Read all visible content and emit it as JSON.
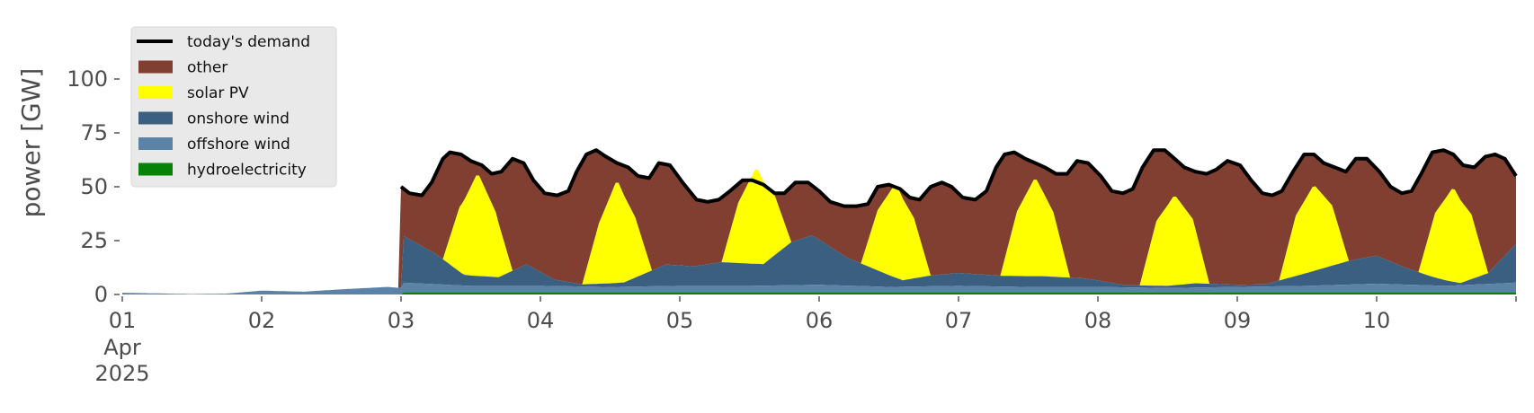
{
  "chart_data": {
    "type": "area",
    "ylabel": "power [GW]",
    "ylim": [
      0,
      120
    ],
    "y_ticks": [
      0,
      25,
      50,
      75,
      100
    ],
    "xlim_days": [
      1,
      11
    ],
    "x_ticks": [
      {
        "day": 1,
        "label": "01",
        "label2": "Apr",
        "label3": "2025"
      },
      {
        "day": 2,
        "label": "02"
      },
      {
        "day": 3,
        "label": "03"
      },
      {
        "day": 4,
        "label": "04"
      },
      {
        "day": 5,
        "label": "05"
      },
      {
        "day": 6,
        "label": "06"
      },
      {
        "day": 7,
        "label": "07"
      },
      {
        "day": 8,
        "label": "08"
      },
      {
        "day": 9,
        "label": "09"
      },
      {
        "day": 10,
        "label": "10"
      }
    ],
    "legend": [
      {
        "label": "today's demand",
        "kind": "line",
        "color": "#000000"
      },
      {
        "label": "other",
        "kind": "patch",
        "color": "#813f32"
      },
      {
        "label": "solar PV",
        "kind": "patch",
        "color": "#ffff00"
      },
      {
        "label": "onshore wind",
        "kind": "patch",
        "color": "#3a5f80"
      },
      {
        "label": "offshore wind",
        "kind": "patch",
        "color": "#5b83a7"
      },
      {
        "label": "hydroelectricity",
        "kind": "patch",
        "color": "#068206"
      }
    ],
    "legend_position": "top-left",
    "grid": false,
    "series": [
      {
        "name": "hydroelectricity",
        "color": "#068206",
        "x": [
          1,
          3,
          3.01,
          11
        ],
        "values": [
          0,
          0,
          1,
          1
        ]
      },
      {
        "name": "offshore wind",
        "color": "#5b83a7",
        "x": [
          1,
          1.25,
          1.5,
          1.75,
          2,
          2.3,
          2.6,
          2.9,
          3,
          3.01,
          3.5,
          4,
          4.5,
          5,
          5.5,
          6,
          6.5,
          7,
          7.5,
          8,
          8.5,
          9,
          9.5,
          10,
          10.5,
          11
        ],
        "values": [
          0.8,
          0.5,
          0.2,
          0.4,
          1.8,
          1.3,
          2.5,
          3.5,
          3,
          4.5,
          3,
          3,
          2.5,
          3,
          3,
          3.5,
          2.5,
          3,
          2.5,
          2.5,
          2,
          2.5,
          3,
          4,
          3,
          4.5
        ]
      },
      {
        "name": "onshore wind",
        "color": "#3a5f80",
        "x": [
          3,
          3.01,
          3.25,
          3.45,
          3.7,
          3.9,
          4.1,
          4.3,
          4.6,
          4.9,
          5.1,
          5.3,
          5.6,
          5.8,
          5.95,
          6.2,
          6.4,
          6.6,
          6.8,
          7,
          7.3,
          7.6,
          7.9,
          8.2,
          8.5,
          8.7,
          9,
          9.2,
          9.5,
          9.8,
          10,
          10.2,
          10.4,
          10.6,
          10.8,
          11
        ],
        "values": [
          0,
          22,
          14,
          5,
          4,
          10,
          3,
          1,
          2,
          10,
          9,
          11,
          10,
          20,
          23,
          13,
          8,
          3,
          5,
          6,
          5,
          5,
          4,
          1,
          1,
          2,
          1,
          1,
          6,
          11,
          13,
          8,
          4,
          1,
          5,
          18
        ]
      },
      {
        "name": "solar PV",
        "color": "#ffff00",
        "x": [
          3,
          3.3,
          3.42,
          3.55,
          3.68,
          3.8,
          4,
          4.3,
          4.42,
          4.55,
          4.68,
          4.8,
          5,
          5.3,
          5.42,
          5.55,
          5.68,
          5.8,
          6,
          6.3,
          6.42,
          6.55,
          6.68,
          6.8,
          7,
          7.3,
          7.42,
          7.55,
          7.68,
          7.8,
          8,
          8.3,
          8.42,
          8.55,
          8.68,
          8.8,
          9,
          9.3,
          9.42,
          9.55,
          9.68,
          9.8,
          10,
          10.3,
          10.42,
          10.55,
          10.68,
          10.8,
          11
        ],
        "values": [
          0,
          0,
          30,
          48,
          30,
          0,
          0,
          0,
          28,
          48,
          28,
          0,
          0,
          0,
          28,
          45,
          28,
          0,
          0,
          0,
          28,
          44,
          28,
          0,
          0,
          0,
          30,
          46,
          30,
          0,
          0,
          0,
          30,
          42,
          30,
          0,
          0,
          0,
          28,
          40,
          28,
          0,
          0,
          0,
          30,
          44,
          30,
          0,
          0
        ]
      },
      {
        "name": "other",
        "color": "#813f32",
        "x": [
          3,
          3.01,
          11
        ],
        "values": [
          0,
          0,
          0
        ]
      },
      {
        "name": "today's demand",
        "color": "#000000",
        "kind": "line",
        "x": [
          3,
          3.06,
          3.15,
          3.22,
          3.3,
          3.35,
          3.43,
          3.5,
          3.58,
          3.65,
          3.72,
          3.8,
          3.88,
          3.95,
          4.03,
          4.12,
          4.2,
          4.26,
          4.33,
          4.4,
          4.47,
          4.55,
          4.63,
          4.7,
          4.78,
          4.85,
          4.93,
          5.02,
          5.12,
          5.2,
          5.28,
          5.36,
          5.45,
          5.52,
          5.6,
          5.68,
          5.75,
          5.83,
          5.92,
          6,
          6.08,
          6.18,
          6.27,
          6.35,
          6.42,
          6.5,
          6.58,
          6.65,
          6.72,
          6.8,
          6.88,
          6.95,
          7.03,
          7.12,
          7.2,
          7.27,
          7.33,
          7.4,
          7.48,
          7.55,
          7.62,
          7.7,
          7.78,
          7.85,
          7.93,
          8.02,
          8.1,
          8.18,
          8.25,
          8.32,
          8.4,
          8.48,
          8.55,
          8.62,
          8.7,
          8.78,
          8.85,
          8.93,
          9.02,
          9.1,
          9.18,
          9.25,
          9.32,
          9.4,
          9.48,
          9.55,
          9.62,
          9.7,
          9.78,
          9.85,
          9.93,
          10.02,
          10.1,
          10.18,
          10.25,
          10.32,
          10.4,
          10.48,
          10.55,
          10.62,
          10.7,
          10.78,
          10.85,
          10.92,
          11
        ],
        "values": [
          50,
          47,
          46,
          52,
          63,
          66,
          65,
          62,
          60,
          56,
          57,
          63,
          61,
          53,
          47,
          46,
          48,
          57,
          65,
          67,
          64,
          61,
          59,
          55,
          54,
          61,
          60,
          52,
          44,
          43,
          44,
          48,
          53,
          53,
          51,
          47,
          47,
          52,
          52,
          48,
          43,
          41,
          41,
          42,
          50,
          51,
          49,
          45,
          44,
          50,
          52,
          50,
          45,
          44,
          48,
          59,
          65,
          66,
          63,
          61,
          59,
          56,
          56,
          62,
          61,
          55,
          48,
          47,
          49,
          59,
          67,
          67,
          63,
          59,
          57,
          56,
          58,
          62,
          60,
          53,
          47,
          46,
          48,
          57,
          65,
          65,
          61,
          59,
          57,
          63,
          63,
          57,
          50,
          47,
          48,
          56,
          66,
          67,
          65,
          60,
          59,
          64,
          65,
          63,
          55
        ]
      }
    ]
  }
}
